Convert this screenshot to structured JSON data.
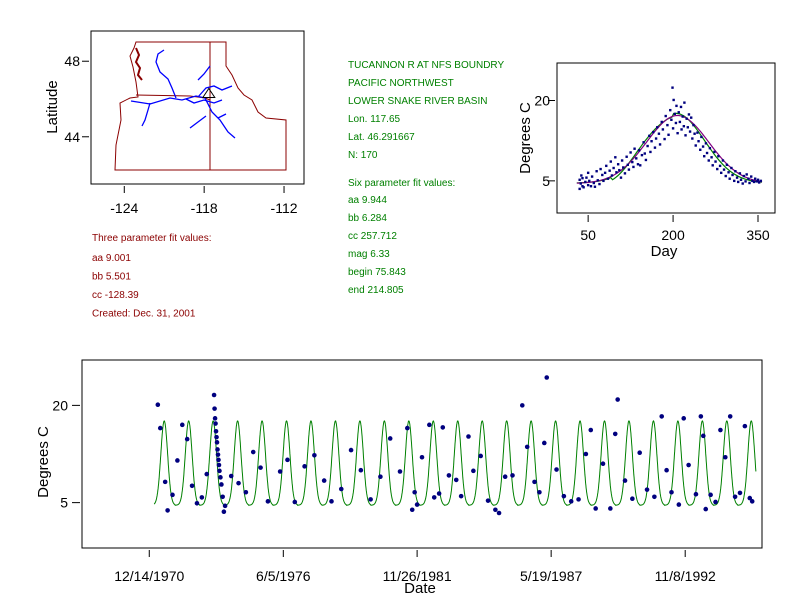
{
  "colors": {
    "panel_text_red": "#8b0000",
    "panel_text_green": "#008000",
    "points": "#00007f",
    "fit_green": "#008000",
    "fit_purple": "#800080",
    "map_border": "#8b0000",
    "rivers": "#0000ff"
  },
  "map": {
    "ylabel": "Latitude",
    "x_ticks": [
      "-124",
      "-118",
      "-112"
    ],
    "y_ticks": [
      "48",
      "44"
    ],
    "xlim": [
      -126.5,
      -110.5
    ],
    "ylim": [
      41.5,
      49.6
    ],
    "site": {
      "lon": -117.65,
      "lat": 46.29
    }
  },
  "site_info": {
    "lines": [
      "TUCANNON R  AT NFS BOUNDRY",
      "PACIFIC NORTHWEST",
      "LOWER SNAKE RIVER BASIN",
      "Lon. 117.65",
      "Lat. 46.291667",
      "N: 170"
    ]
  },
  "six_param": {
    "title": "Six parameter fit values:",
    "lines": [
      "aa 9.944",
      "bb 6.284",
      "cc 257.712",
      "mag 6.33",
      "begin 75.843",
      "end 214.805"
    ]
  },
  "three_param": {
    "title": "Three parameter fit values:",
    "lines": [
      "aa 9.001",
      "bb 5.501",
      "cc -128.39",
      "Created:   Dec. 31, 2001"
    ]
  },
  "chart_data": [
    {
      "type": "scatter",
      "name": "seasonal",
      "xlabel": "Day",
      "ylabel": "Degrees C",
      "x_ticks": [
        "50",
        "200",
        "350"
      ],
      "y_ticks": [
        "5",
        "20"
      ],
      "xlim": [
        -5,
        380
      ],
      "ylim": [
        -1,
        27
      ],
      "points": [
        [
          35,
          3.5
        ],
        [
          35,
          5.2
        ],
        [
          37,
          4.5
        ],
        [
          38,
          6.0
        ],
        [
          40,
          4.0
        ],
        [
          40,
          5.5
        ],
        [
          42,
          3.8
        ],
        [
          45,
          4.8
        ],
        [
          47,
          5.6
        ],
        [
          50,
          4.2
        ],
        [
          50,
          6.5
        ],
        [
          52,
          5.0
        ],
        [
          55,
          4.0
        ],
        [
          57,
          5.8
        ],
        [
          60,
          4.6
        ],
        [
          62,
          3.9
        ],
        [
          65,
          6.8
        ],
        [
          67,
          5.1
        ],
        [
          70,
          4.4
        ],
        [
          72,
          7.2
        ],
        [
          75,
          6.1
        ],
        [
          77,
          5.0
        ],
        [
          80,
          6.5
        ],
        [
          82,
          7.8
        ],
        [
          85,
          5.4
        ],
        [
          88,
          6.9
        ],
        [
          90,
          8.6
        ],
        [
          92,
          6.0
        ],
        [
          95,
          7.4
        ],
        [
          98,
          9.4
        ],
        [
          100,
          6.6
        ],
        [
          103,
          8.1
        ],
        [
          105,
          7.0
        ],
        [
          108,
          5.6
        ],
        [
          110,
          8.8
        ],
        [
          112,
          7.5
        ],
        [
          115,
          6.4
        ],
        [
          118,
          9.5
        ],
        [
          120,
          8.0
        ],
        [
          122,
          7.1
        ],
        [
          125,
          10.3
        ],
        [
          128,
          8.5
        ],
        [
          130,
          7.6
        ],
        [
          132,
          11.0
        ],
        [
          135,
          9.2
        ],
        [
          138,
          8.1
        ],
        [
          140,
          10.7
        ],
        [
          142,
          7.9
        ],
        [
          145,
          9.8
        ],
        [
          148,
          12.2
        ],
        [
          150,
          10.1
        ],
        [
          152,
          8.9
        ],
        [
          155,
          11.5
        ],
        [
          158,
          13.4
        ],
        [
          160,
          10.4
        ],
        [
          162,
          12.4
        ],
        [
          165,
          14.1
        ],
        [
          168,
          11.2
        ],
        [
          170,
          12.9
        ],
        [
          172,
          15.0
        ],
        [
          175,
          13.8
        ],
        [
          177,
          11.8
        ],
        [
          180,
          16.0
        ],
        [
          182,
          14.6
        ],
        [
          185,
          12.8
        ],
        [
          187,
          17.1
        ],
        [
          190,
          15.4
        ],
        [
          192,
          13.6
        ],
        [
          195,
          18.2
        ],
        [
          197,
          16.4
        ],
        [
          199,
          22.4
        ],
        [
          200,
          14.8
        ],
        [
          201,
          20.1
        ],
        [
          203,
          17.5
        ],
        [
          205,
          15.8
        ],
        [
          206,
          19.0
        ],
        [
          208,
          13.9
        ],
        [
          210,
          17.8
        ],
        [
          212,
          16.0
        ],
        [
          214,
          18.8
        ],
        [
          215,
          14.6
        ],
        [
          217,
          17.0
        ],
        [
          219,
          15.2
        ],
        [
          220,
          19.6
        ],
        [
          222,
          13.5
        ],
        [
          224,
          16.6
        ],
        [
          226,
          15.0
        ],
        [
          228,
          17.4
        ],
        [
          230,
          14.2
        ],
        [
          232,
          16.8
        ],
        [
          234,
          12.9
        ],
        [
          236,
          15.4
        ],
        [
          238,
          13.8
        ],
        [
          240,
          11.6
        ],
        [
          243,
          14.0
        ],
        [
          245,
          12.4
        ],
        [
          248,
          10.8
        ],
        [
          250,
          13.2
        ],
        [
          253,
          11.4
        ],
        [
          255,
          9.6
        ],
        [
          258,
          12.0
        ],
        [
          260,
          10.2
        ],
        [
          263,
          8.8
        ],
        [
          265,
          11.1
        ],
        [
          268,
          9.4
        ],
        [
          270,
          7.9
        ],
        [
          273,
          10.4
        ],
        [
          275,
          8.6
        ],
        [
          278,
          7.2
        ],
        [
          280,
          9.6
        ],
        [
          283,
          7.8
        ],
        [
          285,
          6.5
        ],
        [
          288,
          8.8
        ],
        [
          290,
          7.1
        ],
        [
          293,
          5.9
        ],
        [
          295,
          8.0
        ],
        [
          298,
          6.6
        ],
        [
          300,
          5.4
        ],
        [
          303,
          7.4
        ],
        [
          305,
          6.1
        ],
        [
          308,
          5.0
        ],
        [
          310,
          6.8
        ],
        [
          313,
          5.6
        ],
        [
          315,
          4.8
        ],
        [
          318,
          6.4
        ],
        [
          320,
          5.2
        ],
        [
          323,
          4.5
        ],
        [
          325,
          5.9
        ],
        [
          328,
          4.9
        ],
        [
          330,
          6.2
        ],
        [
          333,
          5.4
        ],
        [
          335,
          4.6
        ],
        [
          338,
          5.8
        ],
        [
          340,
          5.0
        ],
        [
          343,
          4.8
        ],
        [
          345,
          5.4
        ],
        [
          348,
          4.9
        ],
        [
          350,
          5.2
        ],
        [
          352,
          4.7
        ],
        [
          355,
          5.0
        ]
      ],
      "fit_curves": [
        "six-parameter (green)",
        "three-parameter (purple)"
      ]
    },
    {
      "type": "scatter",
      "name": "timeseries",
      "xlabel": "Date",
      "ylabel": "Degrees C",
      "x_ticks": [
        "12/14/1970",
        "6/5/1976",
        "11/26/1981",
        "5/19/1987",
        "11/8/1992"
      ],
      "x_tick_years": [
        1970.95,
        1976.43,
        1981.9,
        1987.38,
        1992.86
      ],
      "y_ticks": [
        "5",
        "20"
      ],
      "xlim": [
        1968.2,
        1996.0
      ],
      "ylim": [
        -2,
        27
      ],
      "points": [
        [
          1971.3,
          20.1
        ],
        [
          1971.4,
          16.5
        ],
        [
          1971.6,
          8.2
        ],
        [
          1971.7,
          3.8
        ],
        [
          1971.9,
          6.2
        ],
        [
          1972.1,
          11.5
        ],
        [
          1972.3,
          17.0
        ],
        [
          1972.5,
          14.8
        ],
        [
          1972.7,
          7.6
        ],
        [
          1972.9,
          4.9
        ],
        [
          1973.1,
          5.8
        ],
        [
          1973.3,
          9.4
        ],
        [
          1973.6,
          21.6
        ],
        [
          1973.62,
          19.5
        ],
        [
          1973.64,
          18.0
        ],
        [
          1973.66,
          17.2
        ],
        [
          1973.68,
          16.0
        ],
        [
          1973.7,
          15.1
        ],
        [
          1973.72,
          14.3
        ],
        [
          1973.74,
          13.2
        ],
        [
          1973.76,
          12.4
        ],
        [
          1973.78,
          11.6
        ],
        [
          1973.8,
          10.8
        ],
        [
          1973.82,
          9.9
        ],
        [
          1973.86,
          8.9
        ],
        [
          1973.9,
          7.8
        ],
        [
          1973.95,
          5.9
        ],
        [
          1974.0,
          3.6
        ],
        [
          1974.05,
          4.5
        ],
        [
          1974.3,
          9.1
        ],
        [
          1974.6,
          8.0
        ],
        [
          1974.9,
          6.6
        ],
        [
          1975.2,
          12.8
        ],
        [
          1975.5,
          10.4
        ],
        [
          1975.8,
          5.2
        ],
        [
          1976.3,
          9.8
        ],
        [
          1976.6,
          11.6
        ],
        [
          1976.9,
          5.1
        ],
        [
          1977.3,
          10.6
        ],
        [
          1977.7,
          12.3
        ],
        [
          1978.1,
          8.4
        ],
        [
          1978.4,
          5.2
        ],
        [
          1978.8,
          7.1
        ],
        [
          1979.2,
          13.1
        ],
        [
          1979.6,
          10.0
        ],
        [
          1980.0,
          5.5
        ],
        [
          1980.4,
          9.0
        ],
        [
          1980.8,
          14.9
        ],
        [
          1981.2,
          9.8
        ],
        [
          1981.5,
          16.5
        ],
        [
          1981.7,
          3.9
        ],
        [
          1981.8,
          6.6
        ],
        [
          1981.9,
          4.7
        ],
        [
          1982.1,
          12.0
        ],
        [
          1982.4,
          17.0
        ],
        [
          1982.6,
          5.8
        ],
        [
          1982.8,
          6.4
        ],
        [
          1982.95,
          16.6
        ],
        [
          1983.2,
          9.2
        ],
        [
          1983.5,
          8.5
        ],
        [
          1983.7,
          6.0
        ],
        [
          1984.0,
          15.2
        ],
        [
          1984.2,
          9.9
        ],
        [
          1984.5,
          12.2
        ],
        [
          1984.8,
          5.3
        ],
        [
          1985.1,
          3.9
        ],
        [
          1985.25,
          3.4
        ],
        [
          1985.5,
          9.0
        ],
        [
          1985.8,
          9.2
        ],
        [
          1986.2,
          20.0
        ],
        [
          1986.4,
          13.6
        ],
        [
          1986.7,
          8.2
        ],
        [
          1986.9,
          6.6
        ],
        [
          1987.1,
          14.2
        ],
        [
          1987.2,
          24.3
        ],
        [
          1987.6,
          10.1
        ],
        [
          1987.9,
          6.0
        ],
        [
          1988.2,
          5.2
        ],
        [
          1988.5,
          5.5
        ],
        [
          1988.8,
          12.5
        ],
        [
          1989.0,
          16.2
        ],
        [
          1989.2,
          4.1
        ],
        [
          1989.5,
          11.0
        ],
        [
          1989.8,
          4.1
        ],
        [
          1990.0,
          15.6
        ],
        [
          1990.1,
          20.9
        ],
        [
          1990.4,
          8.4
        ],
        [
          1990.7,
          5.6
        ],
        [
          1991.0,
          12.7
        ],
        [
          1991.3,
          7.0
        ],
        [
          1991.6,
          5.9
        ],
        [
          1991.9,
          18.3
        ],
        [
          1992.1,
          10.0
        ],
        [
          1992.3,
          6.6
        ],
        [
          1992.6,
          4.7
        ],
        [
          1992.8,
          18.0
        ],
        [
          1993.0,
          10.8
        ],
        [
          1993.3,
          6.3
        ],
        [
          1993.5,
          18.3
        ],
        [
          1993.6,
          15.3
        ],
        [
          1993.7,
          4.0
        ],
        [
          1993.9,
          6.2
        ],
        [
          1994.1,
          5.1
        ],
        [
          1994.3,
          16.2
        ],
        [
          1994.5,
          12.0
        ],
        [
          1994.7,
          18.3
        ],
        [
          1994.9,
          5.9
        ],
        [
          1995.1,
          6.5
        ],
        [
          1995.3,
          16.8
        ],
        [
          1995.5,
          5.7
        ],
        [
          1995.6,
          5.2
        ]
      ],
      "fit_curve": "six-parameter periodic (green)"
    }
  ]
}
